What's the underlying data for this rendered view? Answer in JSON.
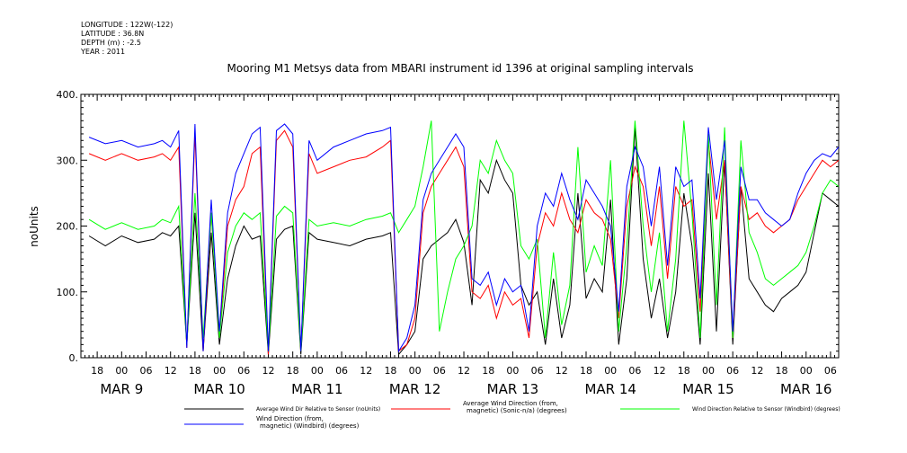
{
  "chart_data": {
    "type": "line",
    "header": {
      "longitude": "LONGITUDE : 122W(-122)",
      "latitude": "LATITUDE : 36.8N",
      "depth": "DEPTH (m) : -2.5",
      "year": "YEAR : 2011"
    },
    "title": "Mooring M1 Metsys data from MBARI instrument id 1396 at original sampling intervals",
    "ylabel": "noUnits",
    "xlabel": "",
    "ylim": [
      0,
      400
    ],
    "yticks": [
      0,
      100,
      200,
      300,
      400
    ],
    "ytick_labels": [
      "0.",
      "100.",
      "200.",
      "300.",
      "400."
    ],
    "xlim_hours": [
      14,
      200
    ],
    "hour_ticks": [
      18,
      24,
      30,
      36,
      42,
      48,
      54,
      60,
      66,
      72,
      78,
      84,
      90,
      96,
      102,
      108,
      114,
      120,
      126,
      132,
      138,
      144,
      150,
      156,
      162,
      168,
      174,
      180,
      186,
      192,
      198
    ],
    "hour_tick_labels": [
      "18",
      "00",
      "06",
      "12",
      "18",
      "00",
      "06",
      "12",
      "18",
      "00",
      "06",
      "12",
      "18",
      "00",
      "06",
      "12",
      "18",
      "00",
      "06",
      "12",
      "18",
      "00",
      "06",
      "12",
      "18",
      "00",
      "06",
      "12",
      "18",
      "00",
      "06"
    ],
    "day_labels": [
      {
        "text": "MAR  9",
        "hour": 24
      },
      {
        "text": "MAR 10",
        "hour": 48
      },
      {
        "text": "MAR 11",
        "hour": 72
      },
      {
        "text": "MAR 12",
        "hour": 96
      },
      {
        "text": "MAR 13",
        "hour": 120
      },
      {
        "text": "MAR 14",
        "hour": 144
      },
      {
        "text": "MAR 15",
        "hour": 168
      },
      {
        "text": "MAR 16",
        "hour": 192
      }
    ],
    "series": [
      {
        "name": "Average Wind Dir Relative to Sensor (noUnits)",
        "color": "#000000",
        "x": [
          16,
          20,
          24,
          28,
          32,
          34,
          36,
          38,
          40,
          42,
          44,
          46,
          48,
          50,
          52,
          54,
          56,
          58,
          60,
          62,
          64,
          66,
          68,
          70,
          72,
          76,
          80,
          84,
          88,
          90,
          92,
          94,
          96,
          98,
          100,
          102,
          104,
          106,
          108,
          110,
          112,
          114,
          116,
          118,
          120,
          122,
          124,
          126,
          128,
          130,
          132,
          134,
          136,
          138,
          140,
          142,
          144,
          146,
          148,
          150,
          152,
          154,
          156,
          158,
          160,
          162,
          164,
          166,
          168,
          170,
          172,
          174,
          176,
          178,
          180,
          182,
          184,
          186,
          188,
          190,
          192,
          194,
          196,
          198,
          200
        ],
        "values": [
          185,
          170,
          185,
          175,
          180,
          190,
          185,
          200,
          20,
          220,
          10,
          190,
          20,
          120,
          170,
          200,
          180,
          185,
          5,
          180,
          195,
          200,
          5,
          190,
          180,
          175,
          170,
          180,
          185,
          190,
          5,
          20,
          40,
          150,
          170,
          180,
          190,
          210,
          175,
          80,
          270,
          250,
          300,
          270,
          250,
          110,
          80,
          100,
          20,
          120,
          30,
          80,
          250,
          90,
          120,
          100,
          240,
          20,
          120,
          350,
          150,
          60,
          120,
          30,
          100,
          250,
          170,
          20,
          280,
          40,
          300,
          20,
          260,
          120,
          100,
          80,
          70,
          90,
          100,
          110,
          130,
          190,
          250,
          240,
          230
        ]
      },
      {
        "name": "Average Wind Direction (from, magnetic) (Sonic-n/a) (degrees)",
        "color": "#ff0000",
        "x": [
          16,
          20,
          24,
          28,
          32,
          34,
          36,
          38,
          40,
          42,
          44,
          46,
          48,
          50,
          52,
          54,
          56,
          58,
          60,
          62,
          64,
          66,
          68,
          70,
          72,
          76,
          80,
          84,
          88,
          90,
          92,
          94,
          96,
          98,
          100,
          102,
          104,
          106,
          108,
          110,
          112,
          114,
          116,
          118,
          120,
          122,
          124,
          126,
          128,
          130,
          132,
          134,
          136,
          138,
          140,
          142,
          144,
          146,
          148,
          150,
          152,
          154,
          156,
          158,
          160,
          162,
          164,
          166,
          168,
          170,
          172,
          174,
          176,
          178,
          180,
          182,
          184,
          186,
          188,
          190,
          192,
          194,
          196,
          198,
          200
        ],
        "values": [
          310,
          300,
          310,
          300,
          305,
          310,
          300,
          320,
          15,
          340,
          10,
          220,
          30,
          200,
          240,
          260,
          310,
          320,
          5,
          330,
          345,
          320,
          10,
          310,
          280,
          290,
          300,
          305,
          320,
          330,
          10,
          20,
          60,
          220,
          260,
          280,
          300,
          320,
          290,
          100,
          90,
          110,
          60,
          100,
          80,
          90,
          30,
          170,
          220,
          200,
          250,
          210,
          190,
          240,
          220,
          210,
          180,
          60,
          230,
          290,
          260,
          170,
          260,
          120,
          260,
          230,
          240,
          70,
          330,
          210,
          300,
          30,
          260,
          210,
          220,
          200,
          190,
          200,
          210,
          240,
          260,
          280,
          300,
          290,
          300
        ]
      },
      {
        "name": "Wind Direction Relative to Sensor (Windbird) (degrees)",
        "color": "#00ff00",
        "x": [
          16,
          20,
          24,
          28,
          32,
          34,
          36,
          38,
          40,
          42,
          44,
          46,
          48,
          50,
          52,
          54,
          56,
          58,
          60,
          62,
          64,
          66,
          68,
          70,
          72,
          76,
          80,
          84,
          88,
          90,
          92,
          94,
          96,
          98,
          100,
          102,
          104,
          106,
          108,
          110,
          112,
          114,
          116,
          118,
          120,
          122,
          124,
          126,
          128,
          130,
          132,
          134,
          136,
          138,
          140,
          142,
          144,
          146,
          148,
          150,
          152,
          154,
          156,
          158,
          160,
          162,
          164,
          166,
          168,
          170,
          172,
          174,
          176,
          178,
          180,
          182,
          184,
          186,
          188,
          190,
          192,
          194,
          196,
          198,
          200
        ],
        "values": [
          210,
          195,
          205,
          195,
          200,
          210,
          205,
          230,
          20,
          250,
          30,
          220,
          30,
          160,
          200,
          220,
          210,
          220,
          10,
          215,
          230,
          220,
          10,
          210,
          200,
          205,
          200,
          210,
          215,
          220,
          190,
          210,
          230,
          290,
          360,
          40,
          100,
          150,
          170,
          200,
          300,
          280,
          330,
          300,
          280,
          170,
          150,
          180,
          30,
          160,
          50,
          110,
          320,
          130,
          170,
          140,
          300,
          40,
          170,
          360,
          200,
          100,
          190,
          40,
          150,
          360,
          220,
          30,
          340,
          80,
          350,
          30,
          330,
          190,
          160,
          120,
          110,
          120,
          130,
          140,
          160,
          200,
          250,
          270,
          260
        ]
      },
      {
        "name": "Wind Direction (from, magnetic) (Windbird) (degrees)",
        "color": "#0000ff",
        "x": [
          16,
          20,
          24,
          28,
          32,
          34,
          36,
          38,
          40,
          42,
          44,
          46,
          48,
          50,
          52,
          54,
          56,
          58,
          60,
          62,
          64,
          66,
          68,
          70,
          72,
          76,
          80,
          84,
          88,
          90,
          92,
          94,
          96,
          98,
          100,
          102,
          104,
          106,
          108,
          110,
          112,
          114,
          116,
          118,
          120,
          122,
          124,
          126,
          128,
          130,
          132,
          134,
          136,
          138,
          140,
          142,
          144,
          146,
          148,
          150,
          152,
          154,
          156,
          158,
          160,
          162,
          164,
          166,
          168,
          170,
          172,
          174,
          176,
          178,
          180,
          182,
          184,
          186,
          188,
          190,
          192,
          194,
          196,
          198,
          200
        ],
        "values": [
          335,
          325,
          330,
          320,
          325,
          330,
          320,
          345,
          15,
          355,
          10,
          240,
          40,
          220,
          280,
          310,
          340,
          350,
          10,
          345,
          355,
          340,
          10,
          330,
          300,
          320,
          330,
          340,
          345,
          350,
          10,
          30,
          80,
          240,
          280,
          300,
          320,
          340,
          320,
          120,
          110,
          130,
          80,
          120,
          100,
          110,
          40,
          200,
          250,
          230,
          280,
          240,
          210,
          270,
          250,
          230,
          200,
          70,
          260,
          320,
          290,
          200,
          290,
          140,
          290,
          260,
          270,
          90,
          350,
          240,
          330,
          40,
          290,
          240,
          240,
          220,
          210,
          200,
          210,
          250,
          280,
          300,
          310,
          305,
          320
        ]
      }
    ],
    "legend": [
      {
        "label_lines": [
          "Average Wind Dir Relative to Sensor (noUnits)"
        ],
        "color": "#000000"
      },
      {
        "label_lines": [
          "Average Wind Direction (from,",
          "magnetic) (Sonic-n/a) (degrees)"
        ],
        "color": "#ff0000"
      },
      {
        "label_lines": [
          "Wind Direction Relative to Sensor (Windbird) (degrees)"
        ],
        "color": "#00ff00"
      },
      {
        "label_lines": [
          "Wind Direction (from,",
          "magnetic) (Windbird) (degrees)"
        ],
        "color": "#0000ff"
      }
    ],
    "grid": false,
    "legend_placement": "bottom"
  }
}
